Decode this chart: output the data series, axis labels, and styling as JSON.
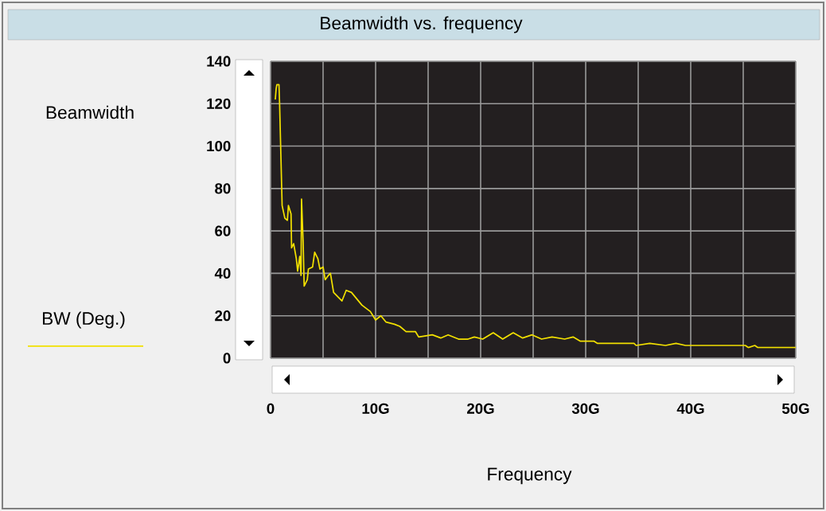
{
  "chart_data": {
    "type": "line",
    "title": "Beamwidth vs. frequency",
    "xlabel": "Frequency",
    "ylabel": "Beamwidth",
    "series": [
      {
        "name": "BW (Deg.)",
        "color": "#f2e000",
        "x": [
          0.45,
          0.53,
          0.6,
          0.8,
          0.86,
          0.98,
          1.1,
          1.36,
          1.6,
          1.7,
          1.95,
          2.0,
          2.2,
          2.45,
          2.58,
          2.78,
          2.9,
          2.95,
          3.1,
          3.2,
          3.5,
          3.6,
          4.0,
          4.2,
          4.5,
          4.7,
          5.0,
          5.2,
          5.5,
          5.7,
          6.0,
          6.4,
          6.8,
          7.2,
          7.7,
          8.2,
          8.7,
          9.5,
          10.0,
          10.5,
          11.0,
          11.8,
          12.3,
          12.9,
          13.8,
          14.1,
          15.4,
          16.2,
          16.9,
          17.9,
          18.8,
          19.4,
          20.2,
          21.2,
          22.1,
          23.1,
          24.0,
          24.9,
          25.8,
          26.8,
          28.0,
          28.8,
          29.5,
          30.8,
          31.1,
          34.6,
          34.8,
          36.1,
          37.6,
          38.6,
          39.5,
          45.2,
          45.5,
          46.1,
          46.4,
          50
        ],
        "values": [
          122,
          127,
          129,
          129,
          120,
          96,
          72,
          66,
          65,
          72,
          68,
          52,
          54,
          47,
          41,
          48,
          39,
          75,
          55,
          34,
          37,
          42,
          43,
          50,
          47,
          42,
          43,
          37,
          39,
          40,
          31,
          29,
          27,
          32,
          31,
          28,
          25,
          22,
          18,
          20,
          17,
          16,
          15,
          12.5,
          12.5,
          10,
          11,
          9.5,
          11,
          9,
          9,
          10,
          9,
          12,
          9,
          12,
          9.5,
          11,
          9,
          10,
          9,
          10,
          8,
          8,
          7,
          7,
          6,
          7,
          6,
          7,
          6,
          6,
          5,
          6,
          5,
          5
        ]
      }
    ],
    "xlim": [
      0,
      50
    ],
    "ylim": [
      0,
      140
    ],
    "xticks": [
      0,
      {
        "value": 5,
        "label": null
      },
      {
        "value": 10,
        "label": "10G"
      },
      {
        "value": 15,
        "label": null
      },
      {
        "value": 20,
        "label": "20G"
      },
      {
        "value": 25,
        "label": null
      },
      {
        "value": 30,
        "label": "30G"
      },
      {
        "value": 35,
        "label": null
      },
      {
        "value": 40,
        "label": "40G"
      },
      {
        "value": 45,
        "label": null
      },
      {
        "value": 50,
        "label": "50G"
      }
    ],
    "yticks": [
      0,
      20,
      40,
      60,
      80,
      100,
      120,
      140
    ],
    "grid": true,
    "legend": "left",
    "marker": "none",
    "line_style": "solid"
  }
}
